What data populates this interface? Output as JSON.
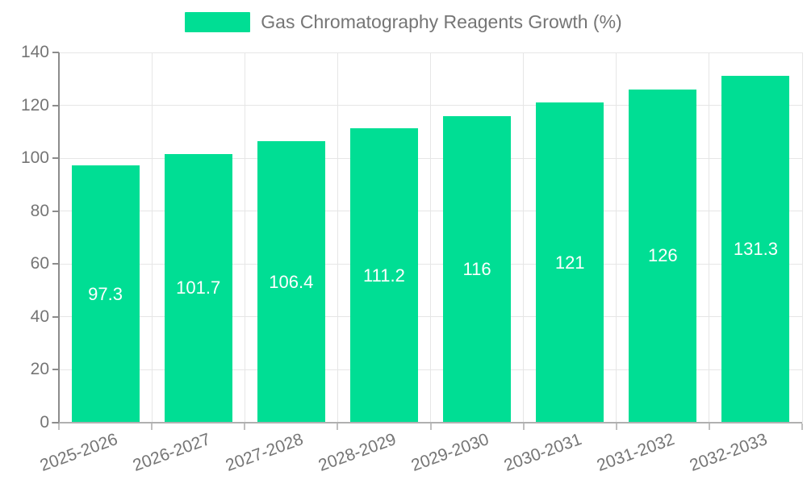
{
  "chart_data": {
    "type": "bar",
    "title": "Gas Chromatography Reagents Growth (%)",
    "legend": {
      "position": "top",
      "entries": [
        "Gas Chromatography Reagents Growth (%)"
      ]
    },
    "categories": [
      "2025-2026",
      "2026-2027",
      "2027-2028",
      "2028-2029",
      "2029-2030",
      "2030-2031",
      "2031-2032",
      "2032-2033"
    ],
    "series": [
      {
        "name": "Gas Chromatography Reagents Growth (%)",
        "values": [
          97.3,
          101.7,
          106.4,
          111.2,
          116,
          121,
          126,
          131.3
        ],
        "value_labels": [
          "97.3",
          "101.7",
          "106.4",
          "111.2",
          "116",
          "121",
          "126",
          "131.3"
        ]
      }
    ],
    "xlabel": "",
    "ylabel": "",
    "ylim": [
      0,
      140
    ],
    "yticks": [
      0,
      20,
      40,
      60,
      80,
      100,
      120,
      140
    ],
    "grid": true,
    "x_label_rotation_deg": -20,
    "colors": {
      "bar": "#00de94",
      "value_label": "#ffffff",
      "axis_text": "#757575",
      "gridline": "#e6e6e6",
      "axis_line": "#8c8c8c",
      "background": "#ffffff"
    }
  }
}
